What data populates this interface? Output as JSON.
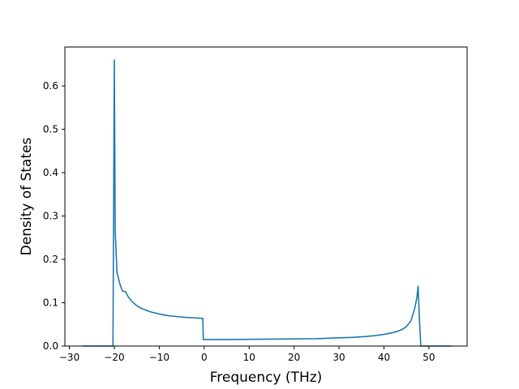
{
  "chart_data": {
    "type": "line",
    "title": "",
    "xlabel": "Frequency (THz)",
    "ylabel": "Density of States",
    "xlim": [
      -31,
      58.5
    ],
    "ylim": [
      0,
      0.69
    ],
    "xticks": [
      -30,
      -20,
      -10,
      0,
      10,
      20,
      30,
      40,
      50
    ],
    "xtick_labels": [
      "−30",
      "−20",
      "−10",
      "0",
      "10",
      "20",
      "30",
      "40",
      "50"
    ],
    "yticks": [
      0.0,
      0.1,
      0.2,
      0.3,
      0.4,
      0.5,
      0.6
    ],
    "ytick_labels": [
      "0.0",
      "0.1",
      "0.2",
      "0.3",
      "0.4",
      "0.5",
      "0.6"
    ],
    "grid": false,
    "legend": "none",
    "series": [
      {
        "color": "#1f77b4",
        "x": [
          -27,
          -20.3,
          -20.0,
          -19.8,
          -19.4,
          -18.8,
          -18.2,
          -17.5,
          -16.8,
          -16.0,
          -15.0,
          -14.0,
          -12.0,
          -10.0,
          -8.0,
          -6.0,
          -4.0,
          -2.0,
          -0.3,
          -0.2,
          0.2,
          5,
          10,
          15,
          20,
          25,
          30,
          33,
          36,
          38,
          40,
          42,
          43,
          44,
          45,
          46,
          46.8,
          47.3,
          47.6,
          47.9,
          48.2,
          55
        ],
        "y": [
          0.0,
          0.0,
          0.66,
          0.265,
          0.17,
          0.145,
          0.127,
          0.125,
          0.112,
          0.102,
          0.093,
          0.087,
          0.079,
          0.074,
          0.07,
          0.068,
          0.066,
          0.065,
          0.064,
          0.015,
          0.015,
          0.015,
          0.0155,
          0.016,
          0.0165,
          0.017,
          0.019,
          0.02,
          0.022,
          0.024,
          0.027,
          0.031,
          0.034,
          0.038,
          0.045,
          0.058,
          0.085,
          0.11,
          0.138,
          0.06,
          0.0,
          0.0
        ]
      }
    ]
  }
}
